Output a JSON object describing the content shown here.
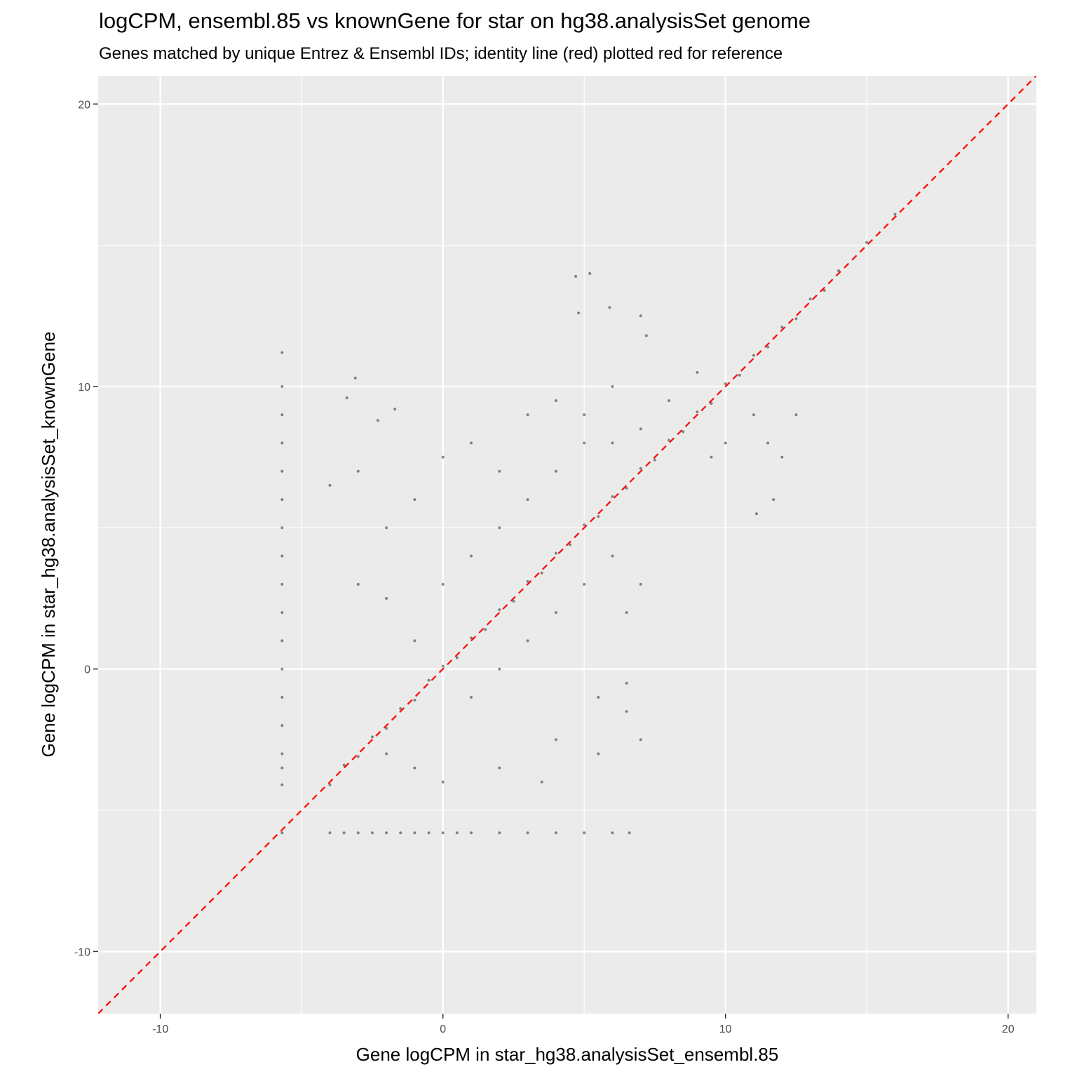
{
  "chart_data": {
    "type": "scatter",
    "title": "logCPM, ensembl.85 vs knownGene for star on hg38.analysisSet genome",
    "subtitle": "Genes matched by unique Entrez & Ensembl IDs; identity line (red) plotted red for reference",
    "x_label": "Gene logCPM in star_hg38.analysisSet_ensembl.85",
    "y_label": "Gene logCPM in star_hg38.analysisSet_knownGene",
    "xlim": [
      -12.2,
      21
    ],
    "ylim": [
      -12.2,
      21
    ],
    "xticks": [
      -10,
      0,
      10,
      20
    ],
    "yticks": [
      -10,
      0,
      10,
      20
    ],
    "x_minor_grid": [
      -5,
      5,
      15
    ],
    "y_minor_grid": [
      -5,
      5,
      15
    ],
    "grid": true,
    "color": "#000000",
    "reference_line": {
      "slope": 1,
      "intercept": 0,
      "color": "#ff0000"
    },
    "x": [
      -4,
      -3.5,
      -3,
      -2.5,
      -2,
      -1.5,
      -1,
      -0.5,
      0,
      0.5,
      1,
      1.5,
      2,
      2.5,
      3,
      3.5,
      4,
      4.5,
      5,
      5.5,
      6,
      6.5,
      7,
      7.5,
      8,
      8.5,
      9,
      9.5,
      10,
      10.5,
      11,
      11.5,
      12,
      12.5,
      13,
      13.5,
      14,
      15,
      16,
      -5.69,
      -5.69,
      -5.69,
      -5.69,
      -5.69,
      -5.69,
      -5.69,
      -5.69,
      -5.69,
      -5.69,
      -5.69,
      -5.69,
      -5.69,
      -5.69,
      -5.69,
      -5.69,
      -5.69,
      -5.69,
      -4,
      -3.5,
      -3,
      -2.5,
      -2,
      -1.5,
      -1,
      -0.5,
      0,
      0.5,
      1,
      2,
      3,
      4,
      5,
      6,
      6.6,
      4.7,
      5.2,
      4.8,
      5.9,
      7,
      7.2,
      -3.1,
      -1.7,
      -3.4,
      -2.3,
      -4,
      -3,
      -2,
      -1,
      0,
      1,
      2,
      3,
      4,
      5,
      6,
      -3,
      -2,
      -1,
      0,
      1,
      2,
      3,
      4,
      5,
      6,
      7,
      8,
      9,
      1,
      2,
      3,
      4,
      5,
      6,
      6.5,
      7,
      5.5,
      6.5,
      4,
      2,
      0,
      -1,
      -2,
      11,
      11.5,
      12,
      11.7,
      11.1,
      12.5,
      10,
      9.5,
      3.5,
      5.5,
      7,
      6.5
    ],
    "y": [
      -4.1,
      -3.4,
      -3.1,
      -2.4,
      -2.1,
      -1.4,
      -1.1,
      -0.4,
      0.1,
      0.4,
      1.1,
      1.4,
      2.1,
      2.4,
      3.1,
      3.4,
      4.1,
      4.4,
      5.1,
      5.4,
      6.1,
      6.4,
      7.1,
      7.4,
      8.1,
      8.4,
      9.1,
      9.4,
      10.1,
      10.4,
      11.1,
      11.4,
      12.1,
      12.4,
      13.1,
      13.4,
      14.1,
      15.1,
      16.1,
      -4.1,
      -3.5,
      -3,
      -2,
      -1,
      0,
      1,
      2,
      3,
      4,
      5,
      6,
      7,
      8,
      9,
      10,
      11.2,
      -5.8,
      -5.8,
      -5.8,
      -5.8,
      -5.8,
      -5.8,
      -5.8,
      -5.8,
      -5.8,
      -5.8,
      -5.8,
      -5.8,
      -5.8,
      -5.8,
      -5.8,
      -5.8,
      -5.8,
      -5.8,
      13.9,
      14,
      12.6,
      12.8,
      12.5,
      11.8,
      10.3,
      9.2,
      9.6,
      8.8,
      6.5,
      7,
      5,
      6,
      7.5,
      8,
      7,
      9,
      9.5,
      9,
      10,
      3,
      2.5,
      1,
      3,
      4,
      5,
      6,
      7,
      8,
      8,
      8.5,
      9.5,
      10.5,
      -1,
      0,
      1,
      2,
      3,
      4,
      2,
      3,
      -1,
      -1.5,
      -2.5,
      -3.5,
      -4,
      -3.5,
      -3,
      9,
      8,
      7.5,
      6,
      5.5,
      9,
      8,
      7.5,
      -4,
      -3,
      -2.5,
      -0.5
    ]
  }
}
